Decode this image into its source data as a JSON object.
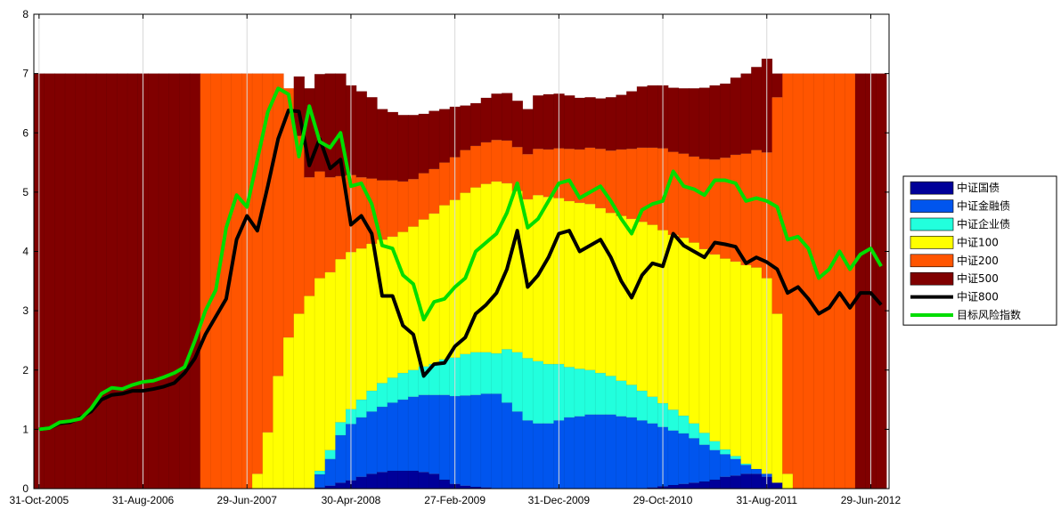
{
  "chart_data": {
    "type": "area",
    "x": [
      "31-Oct-2005",
      "30-Nov-2005",
      "30-Dec-2005",
      "27-Jan-2006",
      "28-Feb-2006",
      "31-Mar-2006",
      "28-Apr-2006",
      "31-May-2006",
      "30-Jun-2006",
      "31-Jul-2006",
      "31-Aug-2006",
      "29-Sep-2006",
      "31-Oct-2006",
      "30-Nov-2006",
      "29-Dec-2006",
      "31-Jan-2007",
      "28-Feb-2007",
      "30-Mar-2007",
      "30-Apr-2007",
      "31-May-2007",
      "29-Jun-2007",
      "31-Jul-2007",
      "31-Aug-2007",
      "28-Sep-2007",
      "31-Oct-2007",
      "30-Nov-2007",
      "28-Dec-2007",
      "31-Jan-2008",
      "29-Feb-2008",
      "31-Mar-2008",
      "30-Apr-2008",
      "30-May-2008",
      "30-Jun-2008",
      "31-Jul-2008",
      "29-Aug-2008",
      "26-Sep-2008",
      "31-Oct-2008",
      "28-Nov-2008",
      "31-Dec-2008",
      "23-Jan-2009",
      "27-Feb-2009",
      "31-Mar-2009",
      "30-Apr-2009",
      "27-May-2009",
      "30-Jun-2009",
      "31-Jul-2009",
      "31-Aug-2009",
      "30-Sep-2009",
      "30-Oct-2009",
      "30-Nov-2009",
      "31-Dec-2009",
      "29-Jan-2010",
      "26-Feb-2010",
      "31-Mar-2010",
      "30-Apr-2010",
      "31-May-2010",
      "30-Jun-2010",
      "30-Jul-2010",
      "31-Aug-2010",
      "30-Sep-2010",
      "29-Oct-2010",
      "30-Nov-2010",
      "31-Dec-2010",
      "31-Jan-2011",
      "28-Feb-2011",
      "31-Mar-2011",
      "29-Apr-2011",
      "31-May-2011",
      "30-Jun-2011",
      "29-Jul-2011",
      "31-Aug-2011",
      "30-Sep-2011",
      "31-Oct-2011",
      "30-Nov-2011",
      "30-Dec-2011",
      "31-Jan-2012",
      "29-Feb-2012",
      "30-Mar-2012",
      "27-Apr-2012",
      "31-May-2012",
      "29-Jun-2012",
      "31-Jul-2012"
    ],
    "x_tick_labels": [
      "31-Oct-2005",
      "31-Aug-2006",
      "29-Jun-2007",
      "30-Apr-2008",
      "27-Feb-2009",
      "31-Dec-2009",
      "29-Oct-2010",
      "31-Aug-2011",
      "29-Jun-2012"
    ],
    "y_ticks": [
      "0",
      "1",
      "2",
      "3",
      "4",
      "5",
      "6",
      "7",
      "8"
    ],
    "ylim": [
      0,
      8
    ],
    "stacked_series": [
      {
        "name": "中证国债",
        "color": "#000099",
        "values": [
          0,
          0,
          0,
          0,
          0,
          0,
          0,
          0,
          0,
          0,
          0,
          0,
          0,
          0,
          0,
          0,
          0,
          0,
          0,
          0,
          0,
          0,
          0,
          0,
          0,
          0,
          0,
          0.02,
          0.05,
          0.1,
          0.14,
          0.2,
          0.25,
          0.28,
          0.3,
          0.3,
          0.3,
          0.28,
          0.25,
          0.15,
          0.08,
          0.05,
          0.03,
          0.02,
          0,
          0,
          0,
          0,
          0,
          0,
          0,
          0,
          0,
          0,
          0,
          0,
          0,
          0,
          0,
          0.02,
          0.04,
          0.06,
          0.08,
          0.1,
          0.12,
          0.15,
          0.2,
          0.22,
          0.25,
          0.25,
          0.2,
          0.1,
          0,
          0,
          0,
          0,
          0,
          0,
          0,
          0,
          0,
          0
        ]
      },
      {
        "name": "中证金融债",
        "color": "#0055ee",
        "values": [
          0,
          0,
          0,
          0,
          0,
          0,
          0,
          0,
          0,
          0,
          0,
          0,
          0,
          0,
          0,
          0,
          0,
          0,
          0,
          0,
          0,
          0,
          0,
          0,
          0,
          0,
          0,
          0.22,
          0.45,
          0.8,
          0.95,
          1.0,
          1.05,
          1.1,
          1.15,
          1.2,
          1.25,
          1.3,
          1.33,
          1.43,
          1.48,
          1.52,
          1.55,
          1.58,
          1.6,
          1.45,
          1.3,
          1.15,
          1.1,
          1.1,
          1.15,
          1.2,
          1.22,
          1.25,
          1.25,
          1.25,
          1.22,
          1.2,
          1.15,
          1.08,
          1.0,
          0.92,
          0.85,
          0.75,
          0.62,
          0.5,
          0.38,
          0.28,
          0.15,
          0.08,
          0.05,
          0,
          0,
          0,
          0,
          0,
          0,
          0,
          0,
          0,
          0,
          0
        ]
      },
      {
        "name": "中证企业债",
        "color": "#22ffdd",
        "values": [
          0,
          0,
          0,
          0,
          0,
          0,
          0,
          0,
          0,
          0,
          0,
          0,
          0,
          0,
          0,
          0,
          0,
          0,
          0,
          0,
          0,
          0,
          0,
          0,
          0,
          0,
          0,
          0.06,
          0.15,
          0.22,
          0.25,
          0.3,
          0.35,
          0.4,
          0.42,
          0.45,
          0.45,
          0.48,
          0.52,
          0.6,
          0.65,
          0.7,
          0.72,
          0.7,
          0.68,
          0.9,
          1.0,
          1.05,
          1.05,
          1.0,
          0.95,
          0.85,
          0.8,
          0.75,
          0.7,
          0.65,
          0.6,
          0.55,
          0.5,
          0.45,
          0.4,
          0.35,
          0.3,
          0.25,
          0.2,
          0.15,
          0.08,
          0.05,
          0.02,
          0,
          0,
          0,
          0,
          0,
          0,
          0,
          0,
          0,
          0,
          0,
          0,
          0
        ]
      },
      {
        "name": "中证100",
        "color": "#ffff00",
        "values": [
          0,
          0,
          0,
          0,
          0,
          0,
          0,
          0,
          0,
          0,
          0,
          0,
          0,
          0,
          0,
          0,
          0,
          0,
          0,
          0,
          0,
          0.25,
          0.95,
          1.9,
          2.55,
          2.95,
          3.25,
          3.25,
          3.0,
          2.75,
          2.65,
          2.55,
          2.48,
          2.42,
          2.38,
          2.38,
          2.42,
          2.48,
          2.54,
          2.6,
          2.66,
          2.72,
          2.78,
          2.84,
          2.9,
          2.8,
          2.72,
          2.68,
          2.8,
          2.82,
          2.8,
          2.8,
          2.8,
          2.8,
          2.78,
          2.75,
          2.78,
          2.8,
          2.85,
          2.9,
          2.92,
          2.95,
          3.0,
          3.05,
          3.1,
          3.15,
          3.22,
          3.28,
          3.35,
          3.4,
          3.3,
          2.85,
          0.25,
          0,
          0,
          0,
          0,
          0,
          0,
          0,
          0,
          0
        ]
      },
      {
        "name": "中证200",
        "color": "#ff5500",
        "values": [
          0,
          0,
          0,
          0,
          0,
          0,
          0,
          0,
          0,
          0,
          0,
          0,
          0,
          0,
          0,
          0,
          7,
          7,
          7,
          7,
          7,
          6.75,
          6.05,
          5.1,
          4.2,
          3.0,
          2.0,
          1.8,
          1.6,
          1.4,
          1.3,
          1.2,
          1.1,
          1.0,
          0.95,
          0.85,
          0.8,
          0.78,
          0.75,
          0.72,
          0.72,
          0.72,
          0.7,
          0.7,
          0.7,
          0.72,
          0.74,
          0.76,
          0.78,
          0.8,
          0.84,
          0.88,
          0.9,
          0.95,
          1.0,
          1.05,
          1.12,
          1.18,
          1.25,
          1.3,
          1.38,
          1.4,
          1.42,
          1.45,
          1.52,
          1.6,
          1.7,
          1.8,
          1.88,
          1.98,
          2.12,
          3.65,
          6.75,
          7,
          7,
          7,
          7,
          7,
          7,
          0,
          0,
          0
        ]
      },
      {
        "name": "中证500",
        "color": "#800000",
        "values": [
          7,
          7,
          7,
          7,
          7,
          7,
          7,
          7,
          7,
          7,
          7,
          7,
          7,
          7,
          7,
          7,
          0,
          0,
          0,
          0,
          0,
          0,
          0,
          0,
          0,
          1.0,
          1.5,
          1.64,
          1.75,
          1.73,
          1.51,
          1.45,
          1.37,
          1.2,
          1.15,
          1.12,
          1.08,
          1.0,
          0.98,
          0.9,
          0.85,
          0.75,
          0.72,
          0.75,
          0.78,
          0.8,
          0.78,
          0.76,
          0.9,
          0.93,
          0.92,
          0.9,
          0.87,
          0.85,
          0.85,
          0.9,
          0.92,
          0.97,
          1.03,
          1.05,
          1.06,
          1.08,
          1.1,
          1.15,
          1.2,
          1.25,
          1.25,
          1.3,
          1.35,
          1.4,
          1.58,
          0.4,
          0,
          0,
          0,
          0,
          0,
          0,
          0,
          7,
          7,
          7
        ]
      }
    ],
    "line_series": [
      {
        "name": "中证800",
        "color": "#000000",
        "values": [
          1.0,
          1.02,
          1.1,
          1.12,
          1.2,
          1.3,
          1.5,
          1.58,
          1.6,
          1.65,
          1.65,
          1.68,
          1.72,
          1.78,
          1.95,
          2.2,
          2.6,
          2.9,
          3.2,
          4.2,
          4.6,
          4.35,
          5.1,
          5.9,
          6.38,
          6.36,
          5.45,
          5.9,
          5.4,
          5.55,
          4.45,
          4.6,
          4.3,
          3.25,
          3.25,
          2.75,
          2.6,
          1.9,
          2.1,
          2.12,
          2.4,
          2.55,
          2.95,
          3.1,
          3.3,
          3.7,
          4.35,
          3.4,
          3.6,
          3.9,
          4.3,
          4.35,
          4.0,
          4.1,
          4.2,
          3.9,
          3.5,
          3.22,
          3.6,
          3.8,
          3.75,
          4.3,
          4.1,
          4.0,
          3.9,
          4.15,
          4.12,
          4.08,
          3.8,
          3.9,
          3.82,
          3.7,
          3.3,
          3.4,
          3.2,
          2.95,
          3.05,
          3.3,
          3.05,
          3.3,
          3.3,
          3.1
        ]
      },
      {
        "name": "目标风险指数",
        "color": "#00dd00",
        "values": [
          1.0,
          1.02,
          1.12,
          1.14,
          1.18,
          1.35,
          1.6,
          1.7,
          1.68,
          1.75,
          1.8,
          1.82,
          1.88,
          1.95,
          2.05,
          2.5,
          3.0,
          3.35,
          4.4,
          4.95,
          4.75,
          5.55,
          6.35,
          6.75,
          6.65,
          5.6,
          6.45,
          5.85,
          5.75,
          6.0,
          5.1,
          5.15,
          4.8,
          4.1,
          4.05,
          3.6,
          3.45,
          2.85,
          3.15,
          3.2,
          3.4,
          3.55,
          4.0,
          4.15,
          4.3,
          4.65,
          5.15,
          4.4,
          4.55,
          4.85,
          5.15,
          5.2,
          4.9,
          5.0,
          5.1,
          4.85,
          4.55,
          4.3,
          4.7,
          4.8,
          4.85,
          5.35,
          5.1,
          5.05,
          4.95,
          5.2,
          5.2,
          5.15,
          4.85,
          4.9,
          4.85,
          4.75,
          4.2,
          4.25,
          4.05,
          3.55,
          3.7,
          4.0,
          3.7,
          3.95,
          4.05,
          3.75
        ]
      }
    ],
    "legend": {
      "placement": "right",
      "entries": [
        "中证国债",
        "中证金融债",
        "中证企业债",
        "中证100",
        "中证200",
        "中证500",
        "中证800",
        "目标风险指数"
      ]
    },
    "grid": "vertical-lines-at-x-ticks"
  }
}
